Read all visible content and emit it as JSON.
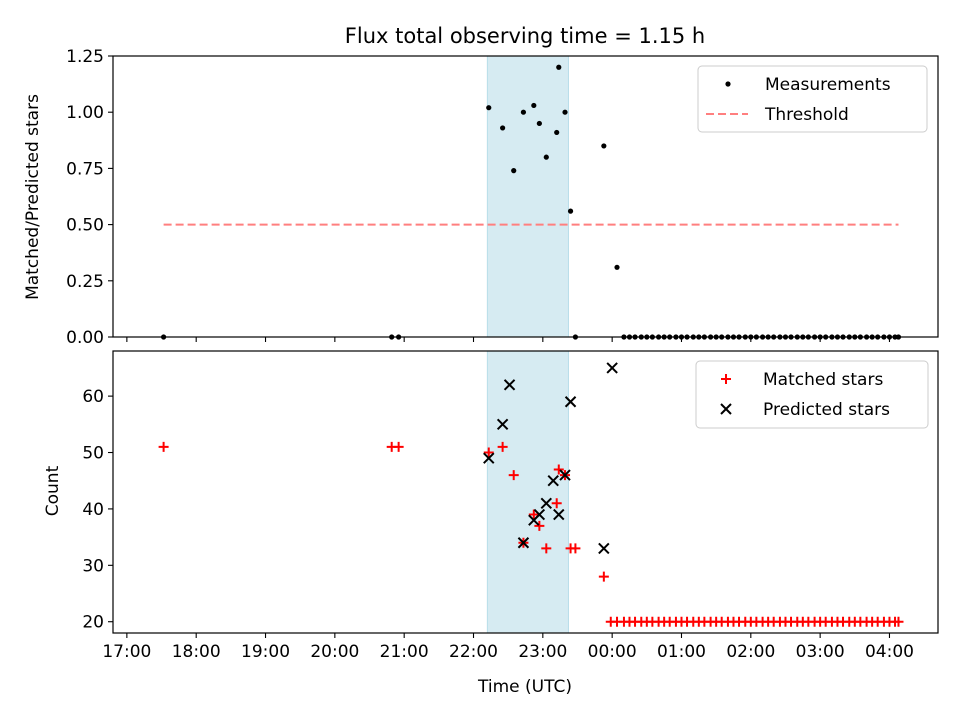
{
  "chart_data": [
    {
      "type": "scatter",
      "title": "Flux total observing time = 1.15 h",
      "xlabel": "",
      "ylabel": "Matched/Predicted stars",
      "xlim": [
        16.8,
        28.7
      ],
      "ylim": [
        0,
        1.25
      ],
      "x_ticks": [
        17,
        18,
        19,
        20,
        21,
        22,
        23,
        24,
        25,
        26,
        27,
        28
      ],
      "y_ticks": [
        0.0,
        0.25,
        0.5,
        0.75,
        1.0,
        1.25
      ],
      "y_tick_labels": [
        "0.00",
        "0.25",
        "0.50",
        "0.75",
        "1.00",
        "1.25"
      ],
      "shaded_span": [
        22.2,
        23.37
      ],
      "legend": {
        "position": "upper right",
        "entries": [
          {
            "label": "Measurements",
            "marker": "dot",
            "color": "#000000"
          },
          {
            "label": "Threshold",
            "marker": "dashed-line",
            "color": "#ff7f7f"
          }
        ]
      },
      "series": [
        {
          "name": "Measurements",
          "marker": "dot",
          "color": "#000000",
          "x": [
            17.53,
            20.82,
            20.92,
            22.22,
            22.42,
            22.58,
            22.72,
            22.87,
            22.95,
            23.05,
            23.2,
            23.23,
            23.32,
            23.4,
            23.47,
            23.88,
            24.07,
            24.17,
            24.25,
            24.33,
            24.42,
            24.5,
            24.58,
            24.67,
            24.75,
            24.83,
            24.92,
            25.0,
            25.08,
            25.17,
            25.25,
            25.33,
            25.42,
            25.5,
            25.58,
            25.67,
            25.75,
            25.83,
            25.92,
            26.0,
            26.08,
            26.17,
            26.25,
            26.33,
            26.42,
            26.5,
            26.58,
            26.67,
            26.75,
            26.83,
            26.92,
            27.0,
            27.08,
            27.17,
            27.25,
            27.33,
            27.42,
            27.5,
            27.58,
            27.67,
            27.75,
            27.83,
            27.92,
            28.0,
            28.08,
            28.13
          ],
          "y": [
            0.0,
            0.0,
            0.0,
            1.02,
            0.93,
            0.74,
            1.0,
            1.03,
            0.95,
            0.8,
            0.91,
            1.2,
            1.0,
            0.56,
            0.0,
            0.85,
            0.31,
            0.0,
            0.0,
            0.0,
            0.0,
            0.0,
            0.0,
            0.0,
            0.0,
            0.0,
            0.0,
            0.0,
            0.0,
            0.0,
            0.0,
            0.0,
            0.0,
            0.0,
            0.0,
            0.0,
            0.0,
            0.0,
            0.0,
            0.0,
            0.0,
            0.0,
            0.0,
            0.0,
            0.0,
            0.0,
            0.0,
            0.0,
            0.0,
            0.0,
            0.0,
            0.0,
            0.0,
            0.0,
            0.0,
            0.0,
            0.0,
            0.0,
            0.0,
            0.0,
            0.0,
            0.0,
            0.0,
            0.0,
            0.0,
            0.0
          ]
        },
        {
          "name": "Threshold",
          "marker": "dashed-line",
          "color": "#ff7f7f",
          "x": [
            17.53,
            28.13
          ],
          "y": [
            0.5,
            0.5
          ]
        }
      ]
    },
    {
      "type": "scatter",
      "title": "",
      "xlabel": "Time (UTC)",
      "ylabel": "Count",
      "xlim": [
        16.8,
        28.7
      ],
      "ylim": [
        18,
        68
      ],
      "x_ticks": [
        17,
        18,
        19,
        20,
        21,
        22,
        23,
        24,
        25,
        26,
        27,
        28
      ],
      "x_tick_labels": [
        "17:00",
        "18:00",
        "19:00",
        "20:00",
        "21:00",
        "22:00",
        "23:00",
        "00:00",
        "01:00",
        "02:00",
        "03:00",
        "04:00"
      ],
      "y_ticks": [
        20,
        30,
        40,
        50,
        60
      ],
      "y_tick_labels": [
        "20",
        "30",
        "40",
        "50",
        "60"
      ],
      "shaded_span": [
        22.2,
        23.37
      ],
      "legend": {
        "position": "upper right",
        "entries": [
          {
            "label": "Matched stars",
            "marker": "plus",
            "color": "#ff0000"
          },
          {
            "label": "Predicted stars",
            "marker": "x",
            "color": "#000000"
          }
        ]
      },
      "series": [
        {
          "name": "Matched stars",
          "marker": "plus",
          "color": "#ff0000",
          "x": [
            17.53,
            20.82,
            20.92,
            22.22,
            22.42,
            22.58,
            22.72,
            22.87,
            22.95,
            23.05,
            23.2,
            23.23,
            23.32,
            23.4,
            23.47,
            23.88,
            23.98,
            24.07,
            24.17,
            24.25,
            24.33,
            24.42,
            24.5,
            24.58,
            24.67,
            24.75,
            24.83,
            24.92,
            25.0,
            25.08,
            25.17,
            25.25,
            25.33,
            25.42,
            25.5,
            25.58,
            25.67,
            25.75,
            25.83,
            25.92,
            26.0,
            26.08,
            26.17,
            26.25,
            26.33,
            26.42,
            26.5,
            26.58,
            26.67,
            26.75,
            26.83,
            26.92,
            27.0,
            27.08,
            27.17,
            27.25,
            27.33,
            27.42,
            27.5,
            27.58,
            27.67,
            27.75,
            27.83,
            27.92,
            28.0,
            28.08,
            28.13
          ],
          "y": [
            51,
            51,
            51,
            50,
            51,
            46,
            34,
            39,
            37,
            33,
            41,
            47,
            46,
            33,
            33,
            28,
            20,
            20,
            20,
            20,
            20,
            20,
            20,
            20,
            20,
            20,
            20,
            20,
            20,
            20,
            20,
            20,
            20,
            20,
            20,
            20,
            20,
            20,
            20,
            20,
            20,
            20,
            20,
            20,
            20,
            20,
            20,
            20,
            20,
            20,
            20,
            20,
            20,
            20,
            20,
            20,
            20,
            20,
            20,
            20,
            20,
            20,
            20,
            20,
            20,
            20,
            20
          ]
        },
        {
          "name": "Predicted stars",
          "marker": "x",
          "color": "#000000",
          "x": [
            22.22,
            22.42,
            22.52,
            22.72,
            22.87,
            22.95,
            23.05,
            23.15,
            23.23,
            23.32,
            23.4,
            23.88,
            24.0
          ],
          "y": [
            49,
            55,
            62,
            34,
            38,
            39,
            41,
            45,
            39,
            46,
            59,
            33,
            65
          ]
        }
      ]
    }
  ]
}
